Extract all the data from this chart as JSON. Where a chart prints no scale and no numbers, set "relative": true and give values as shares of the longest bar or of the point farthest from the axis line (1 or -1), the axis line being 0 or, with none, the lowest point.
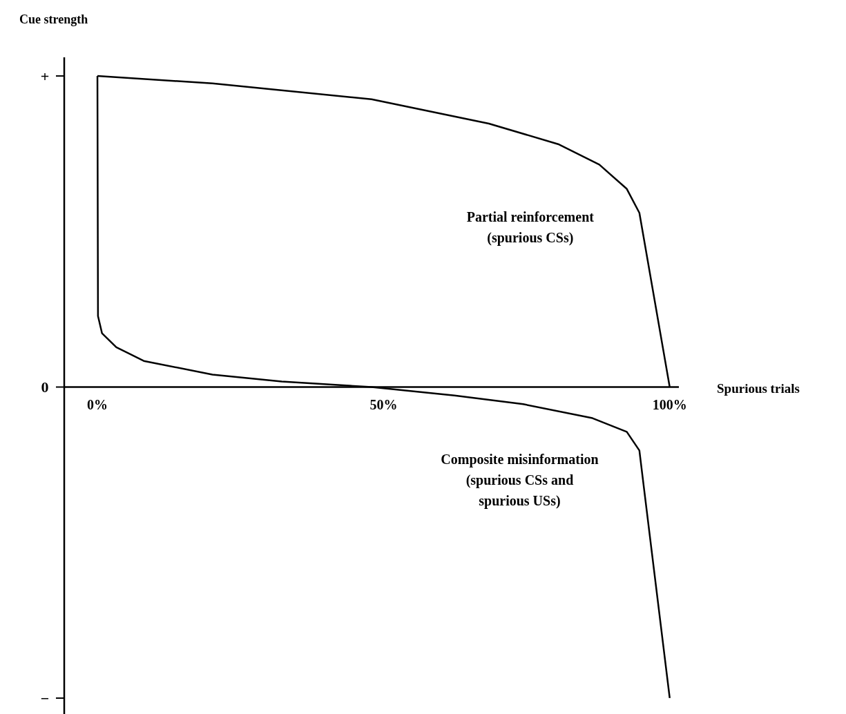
{
  "chart_data": {
    "type": "line",
    "xlabel": "Spurious trials",
    "ylabel": "Cue strength",
    "xlim": [
      -5.8,
      101.6
    ],
    "xticks": [
      {
        "value": 0,
        "label": "0%"
      },
      {
        "value": 50,
        "label": "50%"
      },
      {
        "value": 100,
        "label": "100%"
      }
    ],
    "relative": true,
    "annotations": [
      "+",
      "0",
      "−"
    ],
    "grid": false,
    "marker": "none",
    "line_style": "solid",
    "series": [
      {
        "name": "Partial reinforcement\n(spurious CSs)",
        "color": "#000000",
        "x": [
          0,
          20.1,
          47.9,
          68.4,
          80.5,
          87.7,
          92.5,
          94.7,
          100
        ],
        "values": [
          1,
          0.976,
          0.925,
          0.847,
          0.781,
          0.715,
          0.637,
          0.56,
          0
        ]
      },
      {
        "name": "Composite misinformation\n(spurious CSs and\nspurious USs)",
        "color": "#000000",
        "x": [
          0,
          0.1,
          0.8,
          3.3,
          8.1,
          20.1,
          32.2,
          47.9,
          62.4,
          74.4,
          86.5,
          92.5,
          94.7,
          95.5,
          100
        ],
        "values": [
          1,
          0.228,
          0.173,
          0.128,
          0.084,
          0.04,
          0.018,
          0,
          -0.027,
          -0.055,
          -0.1,
          -0.144,
          -0.204,
          -0.325,
          -1
        ]
      }
    ]
  }
}
